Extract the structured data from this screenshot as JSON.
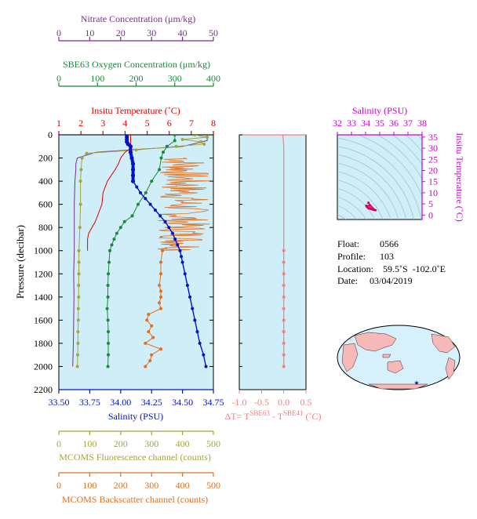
{
  "colors": {
    "nitrate": "#7b2d8e",
    "oxygen": "#1a8a3a",
    "temperature": "#e00000",
    "salinity": "#0014c8",
    "deltaT": "#f08080",
    "fluorescence": "#a5a53a",
    "backscatter": "#e07020",
    "ts_axes": "#cc00cc",
    "panel_bg": "#cfeef7",
    "land": "#f7b8b8",
    "ocean_map": "#d6f1fb"
  },
  "info": {
    "float_label": "Float:",
    "float_value": "0566",
    "profile_label": "Profile:",
    "profile_value": "103",
    "location_label": "Location:",
    "location_value": "59.5˚S  -102.0˚E",
    "date_label": "Date:",
    "date_value": "03/04/2019"
  },
  "chart_data": [
    {
      "type": "line",
      "panel": "profile",
      "ylabel": "Pressure (decibar)",
      "y_ticks": [
        "0",
        "200",
        "400",
        "600",
        "800",
        "1000",
        "1200",
        "1400",
        "1600",
        "1800",
        "2000",
        "2200"
      ],
      "ylim": [
        2200,
        0
      ],
      "grid": false,
      "axes": {
        "nitrate": {
          "title": "Nitrate Concentration (μm/kg)",
          "range": [
            0,
            50
          ],
          "ticks": [
            "0",
            "10",
            "20",
            "30",
            "40",
            "50"
          ]
        },
        "oxygen": {
          "title": "SBE63 Oxygen Concentration (μm/kg)",
          "range": [
            0,
            400
          ],
          "ticks": [
            "0",
            "100",
            "200",
            "300",
            "400"
          ]
        },
        "temperature": {
          "title": "Insitu Temperature (˚C)",
          "range": [
            1,
            8
          ],
          "ticks": [
            "1",
            "2",
            "3",
            "4",
            "5",
            "6",
            "7",
            "8"
          ]
        },
        "salinity": {
          "title": "Salinity (PSU)",
          "range": [
            33.5,
            34.75
          ],
          "ticks": [
            "33.50",
            "33.75",
            "34.00",
            "34.25",
            "34.50",
            "34.75"
          ]
        },
        "fluorescence": {
          "title": "MCOMS Fluorescence channel (counts)",
          "range": [
            0,
            500
          ],
          "ticks": [
            "0",
            "100",
            "200",
            "300",
            "400",
            "500"
          ]
        },
        "backscatter": {
          "title": "MCOMS Backscatter channel (counts)",
          "range": [
            0,
            500
          ],
          "ticks": [
            "0",
            "100",
            "200",
            "300",
            "400",
            "500"
          ]
        }
      },
      "series": [
        {
          "key": "salinity",
          "p": [
            0,
            20,
            40,
            60,
            80,
            100,
            150,
            200,
            250,
            300,
            350,
            400,
            450,
            500,
            550,
            600,
            650,
            700,
            750,
            800,
            850,
            900,
            950,
            1000,
            1050,
            1100,
            1200,
            1300,
            1400,
            1500,
            1600,
            1700,
            1800,
            1900,
            2000
          ],
          "values": [
            34.05,
            34.05,
            34.05,
            34.05,
            34.06,
            34.08,
            34.08,
            34.09,
            34.1,
            34.1,
            34.1,
            34.1,
            34.13,
            34.16,
            34.2,
            34.24,
            34.28,
            34.32,
            34.36,
            34.39,
            34.42,
            34.44,
            34.46,
            34.48,
            34.49,
            34.5,
            34.52,
            34.54,
            34.56,
            34.58,
            34.6,
            34.62,
            34.64,
            34.67,
            34.69
          ]
        },
        {
          "key": "temperature",
          "p": [
            0,
            50,
            90,
            120,
            150,
            200,
            250,
            300,
            400,
            500,
            600,
            700,
            750,
            800,
            850,
            900,
            950,
            1000
          ],
          "values": [
            4.25,
            4.25,
            4.25,
            4.22,
            4.0,
            3.8,
            3.7,
            3.55,
            3.2,
            3.0,
            2.95,
            2.75,
            2.65,
            2.5,
            2.35,
            2.3,
            2.3,
            2.3
          ]
        },
        {
          "key": "oxygen",
          "p": [
            0,
            50,
            100,
            150,
            200,
            300,
            400,
            500,
            600,
            700,
            750,
            800,
            850,
            900,
            950,
            1000,
            1100,
            1200,
            1300,
            1400,
            1500,
            1600,
            1700,
            1800,
            1900,
            2000
          ],
          "values": [
            300,
            300,
            280,
            270,
            265,
            260,
            240,
            225,
            205,
            190,
            170,
            160,
            150,
            143,
            137,
            132,
            130,
            128,
            127,
            127,
            125,
            127,
            128,
            128,
            128,
            127
          ]
        },
        {
          "key": "nitrate",
          "p": [
            0,
            50,
            100,
            150,
            200,
            250,
            300,
            400,
            600,
            800,
            1000,
            1200,
            1400,
            1600,
            1800,
            2000
          ],
          "values": [
            48,
            48,
            40,
            12,
            6,
            5.5,
            5.5,
            5.2,
            5,
            5,
            5,
            4.8,
            4.9,
            4.8,
            4.7,
            4.5
          ]
        },
        {
          "key": "fluorescence",
          "p": [
            0,
            20,
            40,
            60,
            80,
            100,
            130,
            160,
            200,
            300,
            400,
            600,
            800,
            1000,
            1100,
            1200,
            1300,
            1400,
            1500,
            1600,
            1700,
            1800,
            1900,
            2000
          ],
          "values": [
            440,
            480,
            400,
            460,
            470,
            380,
            250,
            90,
            75,
            72,
            70,
            70,
            68,
            65,
            65,
            65,
            64,
            64,
            63,
            63,
            62,
            62,
            61,
            60
          ]
        },
        {
          "key": "backscatter",
          "p": [
            1000,
            1100,
            1200,
            1300,
            1350,
            1400,
            1450,
            1500,
            1550,
            1600,
            1650,
            1700,
            1750,
            1800,
            1850,
            1900,
            1950,
            2000
          ],
          "values": [
            335,
            330,
            330,
            325,
            330,
            330,
            325,
            330,
            290,
            285,
            300,
            290,
            305,
            280,
            330,
            300,
            295,
            280
          ]
        }
      ],
      "backscatter_noisy_range": {
        "p": [
          200,
          1000
        ],
        "counts": [
          320,
          490
        ]
      }
    },
    {
      "type": "line",
      "panel": "deltaT",
      "xlabel": "ΔT= T(SBE63) - T(SBE41) (˚C)",
      "xlabel_html": "ΔT= T<sup>SBE63</sup> - T<sup>SBE41</sup> (˚C)",
      "x_ticks": [
        "-1.0",
        "-0.5",
        "0.0",
        "0.5"
      ],
      "xlim": [
        -1.0,
        0.5
      ],
      "p": [
        0,
        100,
        200,
        400,
        600,
        800,
        1000,
        1100,
        1200,
        1300,
        1400,
        1500,
        1600,
        1700,
        1800,
        1900,
        2000
      ],
      "values": [
        -0.02,
        0.0,
        0.0,
        0.0,
        0.0,
        0.0,
        0.0,
        0.0,
        0.0,
        0.0,
        0.0,
        0.0,
        0.0,
        0.0,
        0.0,
        0.0,
        0.0
      ]
    },
    {
      "type": "scatter",
      "panel": "ts",
      "xlabel": "Salinity (PSU)",
      "ylabel": "Insitu Temperature (˚C)",
      "x_ticks": [
        "32",
        "33",
        "34",
        "35",
        "36",
        "37",
        "38"
      ],
      "y_ticks": [
        "0",
        "5",
        "10",
        "15",
        "20",
        "25",
        "30",
        "35"
      ],
      "xlim": [
        32,
        38
      ],
      "ylim": [
        -2,
        36
      ],
      "points": [
        [
          34.05,
          4.2
        ],
        [
          34.08,
          4.0
        ],
        [
          34.1,
          3.6
        ],
        [
          34.2,
          3.0
        ],
        [
          34.3,
          2.9
        ],
        [
          34.4,
          2.7
        ],
        [
          34.5,
          2.5
        ],
        [
          34.6,
          2.3
        ],
        [
          34.7,
          2.2
        ],
        [
          34.2,
          5.5
        ],
        [
          34.3,
          4.5
        ]
      ]
    }
  ]
}
